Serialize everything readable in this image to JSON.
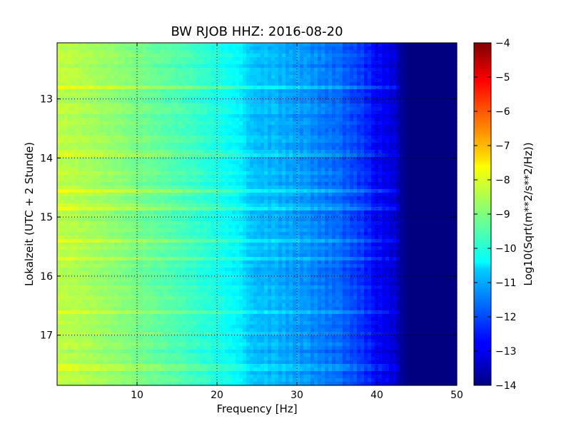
{
  "chart_data": {
    "type": "heatmap",
    "title": "BW RJOB HHZ: 2016-08-20",
    "xlabel": "Frequency [Hz]",
    "ylabel": "Lokalzeit (UTC + 2 Stunde)",
    "xlim": [
      0,
      50
    ],
    "ylim": [
      12.05,
      17.85
    ],
    "y_inverted": true,
    "x_ticks": [
      10,
      20,
      30,
      40,
      50
    ],
    "x_tick_labels": [
      "10",
      "20",
      "30",
      "40",
      "50"
    ],
    "y_ticks": [
      13,
      14,
      15,
      16,
      17
    ],
    "y_tick_labels": [
      "13",
      "14",
      "15",
      "16",
      "17"
    ],
    "grid": true,
    "colormap": "jet",
    "colorbar": {
      "label": "Log10(Sqrt(m**2/s**2/Hz))",
      "range": [
        -14,
        -4
      ],
      "ticks": [
        -4,
        -5,
        -6,
        -7,
        -8,
        -9,
        -10,
        -11,
        -12,
        -13,
        -14
      ],
      "tick_labels": [
        "−4",
        "−5",
        "−6",
        "−7",
        "−8",
        "−9",
        "−10",
        "−11",
        "−12",
        "−13",
        "−14"
      ]
    },
    "spectrum_profile": {
      "frequency_hz": [
        0,
        2,
        5,
        10,
        15,
        20,
        23,
        24,
        26,
        30,
        35,
        38,
        40,
        42,
        43,
        44,
        50
      ],
      "log10_amplitude": [
        -8.4,
        -8.5,
        -8.7,
        -9.1,
        -9.5,
        -10.0,
        -10.4,
        -10.8,
        -11.0,
        -11.3,
        -11.8,
        -12.3,
        -12.8,
        -13.2,
        -13.7,
        -14.0,
        -14.0
      ]
    },
    "noise_bands_hour": [
      12.8,
      13.95,
      14.55,
      14.85,
      15.4,
      15.7,
      16.6,
      17.55
    ]
  }
}
